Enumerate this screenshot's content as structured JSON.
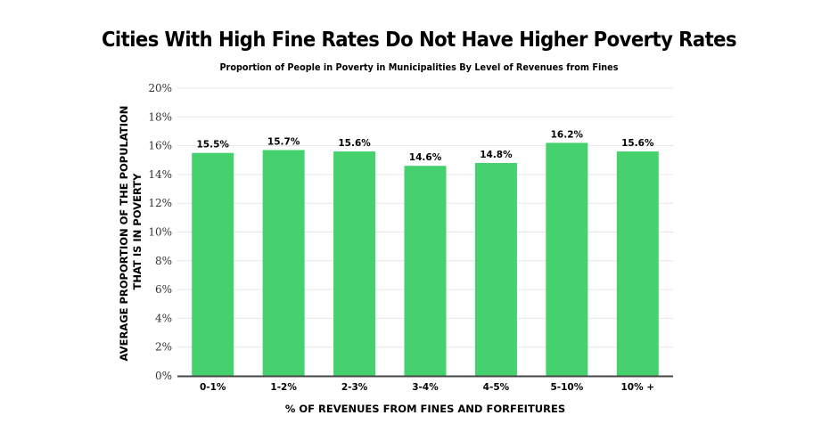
{
  "colors": {
    "bar": "#46d16f",
    "grid": "#e6e6e6",
    "axis": "#444444"
  },
  "chart_data": {
    "type": "bar",
    "title": "Cities With High Fine Rates Do Not Have Higher Poverty Rates",
    "subtitle": "Proportion of People in Poverty in Municipalities By Level of Revenues from Fines",
    "xlabel": "% OF REVENUES FROM FINES AND FORFEITURES",
    "ylabel_lines": [
      "AVERAGE PROPORTION OF THE POPULATION",
      "THAT IS IN POVERTY"
    ],
    "categories": [
      "0-1%",
      "1-2%",
      "2-3%",
      "3-4%",
      "4-5%",
      "5-10%",
      "10% +"
    ],
    "values": [
      15.5,
      15.7,
      15.6,
      14.6,
      14.8,
      16.2,
      15.6
    ],
    "data_labels": [
      "15.5%",
      "15.7%",
      "15.6%",
      "14.6%",
      "14.8%",
      "16.2%",
      "15.6%"
    ],
    "yticks": [
      "0%",
      "2%",
      "4%",
      "6%",
      "8%",
      "10%",
      "12%",
      "14%",
      "16%",
      "18%",
      "20%"
    ],
    "ylim": [
      0,
      20
    ],
    "grid": true,
    "legend": "none"
  }
}
